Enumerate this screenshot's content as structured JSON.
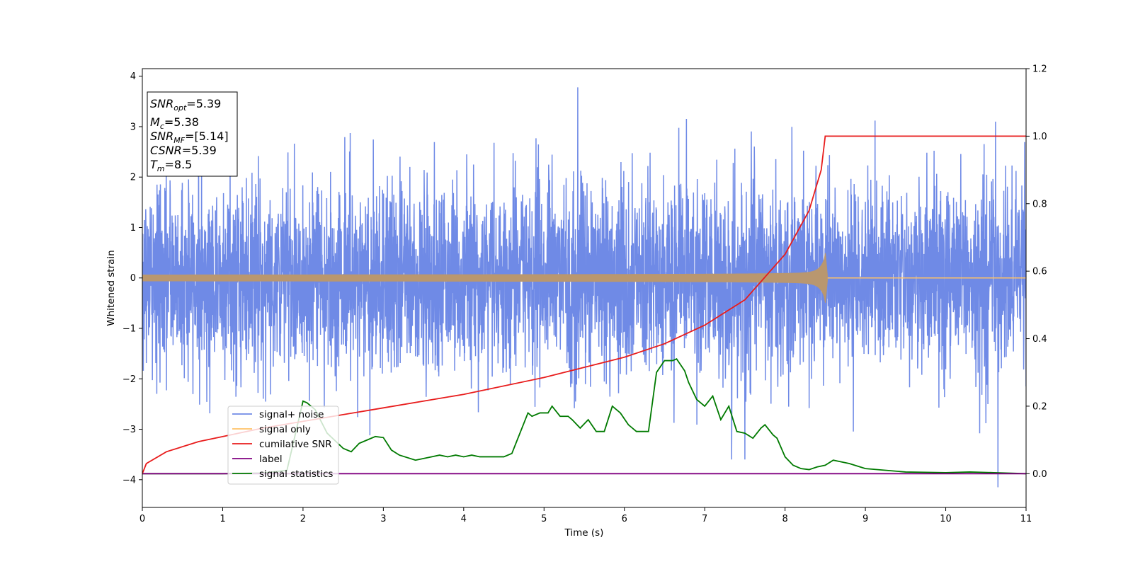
{
  "chart_data": {
    "type": "line",
    "xlabel": "Time (s)",
    "ylabel": "Whitened strain",
    "xlim": [
      0,
      11
    ],
    "ylim": [
      -4.55,
      4.15
    ],
    "y2lim": [
      -0.1,
      1.2
    ],
    "x_ticks": [
      "0",
      "1",
      "2",
      "3",
      "4",
      "5",
      "6",
      "7",
      "8",
      "9",
      "10",
      "11"
    ],
    "y_ticks": [
      "−4",
      "−3",
      "−2",
      "−1",
      "0",
      "1",
      "2",
      "3",
      "4"
    ],
    "y2_ticks": [
      "0.0",
      "0.2",
      "0.4",
      "0.6",
      "0.8",
      "1.0",
      "1.2"
    ],
    "grid": false,
    "legend_position": "lower-left",
    "annotation": {
      "line1_base": "SNR",
      "line1_sub": "opt",
      "line1_val": "=5.39",
      "line2_base": "M",
      "line2_sub": "c",
      "line2_val": "=5.38",
      "line3_base": "SNR",
      "line3_sub": "MF",
      "line3_val": "=[5.14]",
      "line4_base": "CSNR",
      "line4_val": "=5.39",
      "line5_base": "T",
      "line5_sub": "m",
      "line5_val": "=8.5"
    },
    "series": [
      {
        "name": "signal+ noise",
        "axis": "left",
        "color": "#6f8ae6",
        "kind": "noise",
        "std": 0.95,
        "x_range": [
          0,
          11
        ],
        "notable_peaks": [
          [
            5.42,
            3.78
          ],
          [
            10.65,
            -4.15
          ],
          [
            9.12,
            3.12
          ],
          [
            10.62,
            3.1
          ]
        ]
      },
      {
        "name": "signal only",
        "axis": "left",
        "color": "#ffc266",
        "kind": "chirp",
        "t_merge": 8.5,
        "amp_start": 0.03,
        "amp_peak": 0.52,
        "ringdown_until": 8.53,
        "x_range": [
          0,
          11
        ]
      },
      {
        "name": "cumilative SNR",
        "axis": "right",
        "color": "#e81c1c",
        "kind": "cumulative",
        "x": [
          0,
          0.05,
          0.3,
          0.7,
          1.0,
          1.5,
          2.0,
          3.0,
          4.0,
          5.0,
          6.0,
          6.5,
          7.0,
          7.5,
          8.0,
          8.3,
          8.45,
          8.5,
          11
        ],
        "y": [
          0.0,
          0.03,
          0.065,
          0.095,
          0.11,
          0.135,
          0.155,
          0.195,
          0.235,
          0.285,
          0.345,
          0.385,
          0.44,
          0.515,
          0.65,
          0.78,
          0.9,
          1.0,
          1.0
        ]
      },
      {
        "name": "label",
        "axis": "right",
        "color": "#800080",
        "kind": "line",
        "x": [
          0,
          11
        ],
        "y": [
          0,
          0
        ]
      },
      {
        "name": "signal statistics",
        "axis": "right",
        "color": "#007a00",
        "kind": "line",
        "x": [
          0,
          0.5,
          1.0,
          1.5,
          1.8,
          2.0,
          2.05,
          2.15,
          2.3,
          2.5,
          2.6,
          2.7,
          2.8,
          2.9,
          3.0,
          3.1,
          3.2,
          3.4,
          3.6,
          3.7,
          3.8,
          3.9,
          4.0,
          4.1,
          4.2,
          4.3,
          4.5,
          4.6,
          4.65,
          4.75,
          4.8,
          4.85,
          4.95,
          5.05,
          5.1,
          5.2,
          5.3,
          5.35,
          5.45,
          5.55,
          5.65,
          5.75,
          5.85,
          5.95,
          6.05,
          6.15,
          6.3,
          6.4,
          6.5,
          6.6,
          6.65,
          6.75,
          6.8,
          6.9,
          7.0,
          7.1,
          7.2,
          7.3,
          7.4,
          7.5,
          7.6,
          7.7,
          7.75,
          7.85,
          7.9,
          8.0,
          8.1,
          8.2,
          8.3,
          8.4,
          8.5,
          8.6,
          8.7,
          8.8,
          9.0,
          9.5,
          10.0,
          10.3,
          10.6,
          11.0
        ],
        "y": [
          0.0,
          0.0,
          0.0,
          0.002,
          0.01,
          0.215,
          0.21,
          0.19,
          0.12,
          0.075,
          0.065,
          0.09,
          0.1,
          0.11,
          0.107,
          0.07,
          0.055,
          0.04,
          0.05,
          0.055,
          0.05,
          0.055,
          0.05,
          0.055,
          0.05,
          0.05,
          0.05,
          0.06,
          0.09,
          0.15,
          0.18,
          0.17,
          0.18,
          0.18,
          0.2,
          0.17,
          0.17,
          0.16,
          0.135,
          0.16,
          0.125,
          0.125,
          0.2,
          0.18,
          0.145,
          0.125,
          0.125,
          0.3,
          0.335,
          0.335,
          0.34,
          0.305,
          0.27,
          0.22,
          0.2,
          0.23,
          0.16,
          0.2,
          0.125,
          0.12,
          0.105,
          0.135,
          0.145,
          0.115,
          0.105,
          0.05,
          0.025,
          0.015,
          0.012,
          0.02,
          0.025,
          0.04,
          0.035,
          0.03,
          0.015,
          0.005,
          0.003,
          0.005,
          0.003,
          0.0
        ]
      }
    ]
  }
}
